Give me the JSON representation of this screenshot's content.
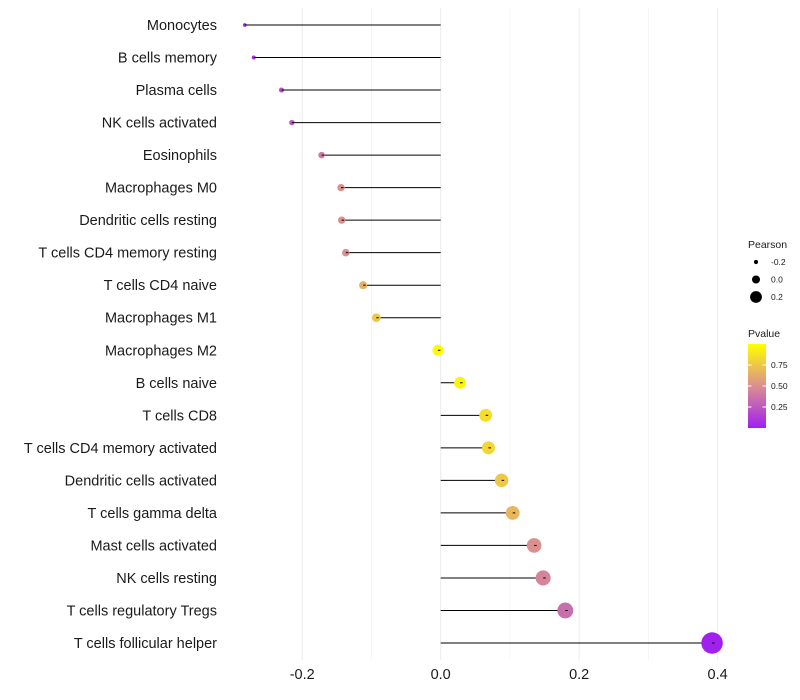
{
  "chart_data": {
    "type": "lollipop",
    "title": "",
    "xlabel": "",
    "ylabel": "",
    "xlim": [
      -0.3,
      0.415
    ],
    "xticks": [
      -0.2,
      0.0,
      0.2,
      0.4
    ],
    "xtick_labels": [
      "-0.2",
      "0.0",
      "0.2",
      "0.4"
    ],
    "grid": true,
    "baseline": 0.0,
    "categories": [
      "Monocytes",
      "B cells memory",
      "Plasma cells",
      "NK cells activated",
      "Eosinophils",
      "Macrophages M0",
      "Dendritic cells resting",
      "T cells CD4 memory resting",
      "T cells CD4 naive",
      "Macrophages M1",
      "Macrophages M2",
      "B cells naive",
      "T cells CD8",
      "T cells CD4 memory activated",
      "Dendritic cells activated",
      "T cells gamma delta",
      "Mast cells activated",
      "NK cells resting",
      "T cells regulatory  Tregs ",
      "T cells follicular helper"
    ],
    "pearson": [
      -0.283,
      -0.27,
      -0.23,
      -0.215,
      -0.172,
      -0.144,
      -0.143,
      -0.137,
      -0.112,
      -0.093,
      -0.004,
      0.028,
      0.065,
      0.069,
      0.088,
      0.104,
      0.135,
      0.148,
      0.18,
      0.392
    ],
    "pvalue": [
      0.05,
      0.08,
      0.2,
      0.25,
      0.4,
      0.5,
      0.5,
      0.5,
      0.65,
      0.75,
      0.98,
      0.95,
      0.85,
      0.82,
      0.75,
      0.68,
      0.5,
      0.45,
      0.35,
      0.002
    ],
    "legend": {
      "position": "right",
      "size": {
        "title": "Pearson",
        "values": [
          -0.2,
          0.0,
          0.2
        ],
        "labels": [
          "-0.2",
          "0.0",
          "0.2"
        ]
      },
      "color": {
        "title": "Pvalue",
        "values": [
          0.25,
          0.5,
          0.75
        ],
        "labels": [
          "0.25",
          "0.50",
          "0.75"
        ],
        "low_color": "#a020f0",
        "mid_color": "#db8f8f",
        "high_color": "#ffff00",
        "range": [
          0.0,
          1.0
        ]
      }
    }
  }
}
